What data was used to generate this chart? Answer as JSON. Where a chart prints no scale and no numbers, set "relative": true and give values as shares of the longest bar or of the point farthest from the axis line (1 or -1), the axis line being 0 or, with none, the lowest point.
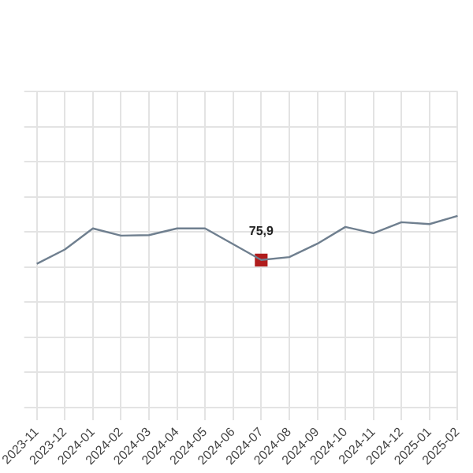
{
  "chart_data": {
    "type": "line",
    "relative": true,
    "categories": [
      "2023-11",
      "2023-12",
      "2024-01",
      "2024-02",
      "2024-03",
      "2024-04",
      "2024-05",
      "2024-06",
      "2024-07",
      "2024-08",
      "2024-09",
      "2024-10",
      "2024-11",
      "2024-12",
      "2025-01",
      "2025-02"
    ],
    "series": [
      {
        "color": "#6f7f8f",
        "values": [
          0,
          0.3,
          0.74,
          0.59,
          0.6,
          0.74,
          0.74,
          0.41,
          0.08,
          0.14,
          0.42,
          0.77,
          0.64,
          0.87,
          0.83,
          1
        ]
      },
      {
        "type": "scatter",
        "values": [
          null,
          null,
          null,
          null,
          null,
          null,
          null,
          null,
          0.08,
          null,
          null,
          null,
          null,
          null,
          null,
          null
        ],
        "color": "#b01c1c",
        "marker": "square"
      }
    ],
    "annotations": [
      {
        "text": "75,9",
        "x": "2024-07",
        "y": 0.08
      }
    ],
    "grid": true,
    "legend": false
  }
}
